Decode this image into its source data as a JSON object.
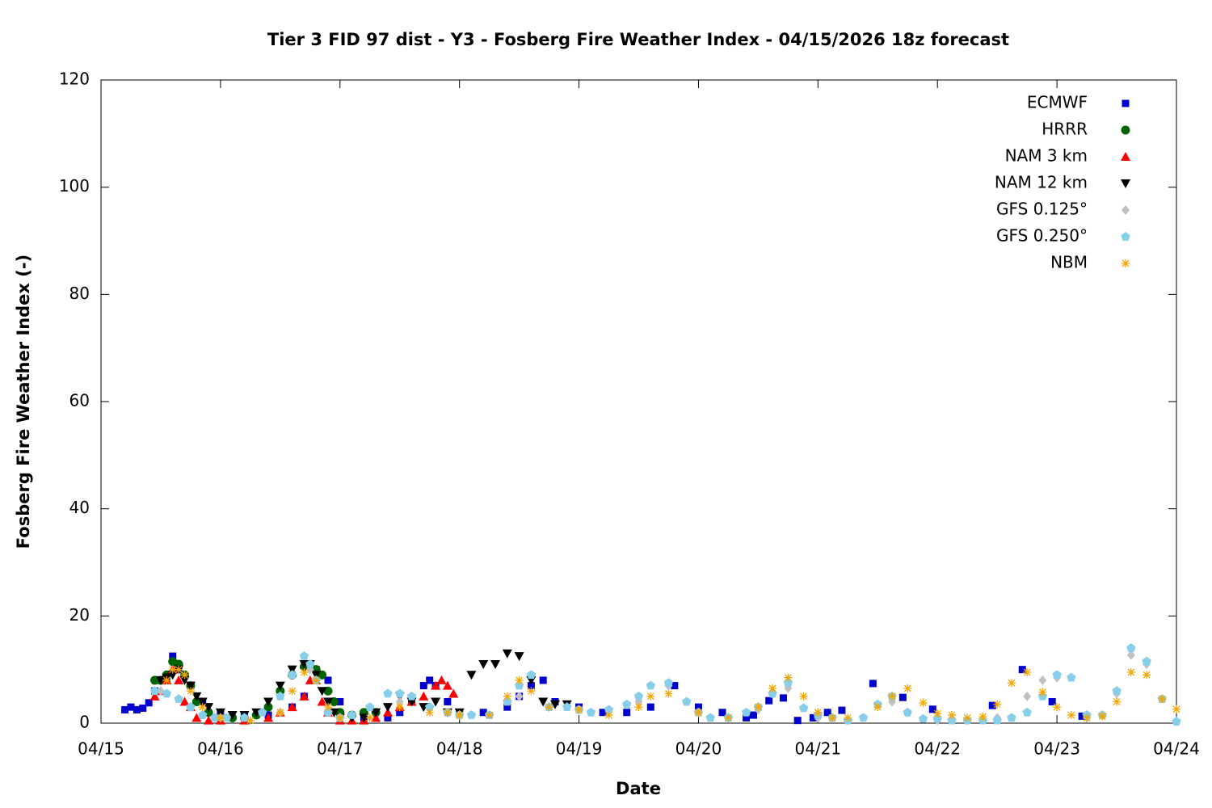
{
  "chart_data": {
    "type": "scatter",
    "title": "Tier 3 FID 97 dist - Y3 - Fosberg Fire Weather Index - 04/15/2026 18z forecast",
    "x_label": "Date",
    "y_label": "Fosberg Fire Weather Index (-)",
    "xlim": [
      0,
      9
    ],
    "xticks": [
      {
        "value": 0,
        "label": "04/15"
      },
      {
        "value": 1,
        "label": "04/16"
      },
      {
        "value": 2,
        "label": "04/17"
      },
      {
        "value": 3,
        "label": "04/18"
      },
      {
        "value": 4,
        "label": "04/19"
      },
      {
        "value": 5,
        "label": "04/20"
      },
      {
        "value": 6,
        "label": "04/21"
      },
      {
        "value": 7,
        "label": "04/22"
      },
      {
        "value": 8,
        "label": "04/23"
      },
      {
        "value": 9,
        "label": "04/24"
      }
    ],
    "ylim": [
      0,
      120
    ],
    "yticks": [
      0,
      20,
      40,
      60,
      80,
      100,
      120
    ],
    "legend": "top-right",
    "series": [
      {
        "name": "ECMWF",
        "color": "#0000cc",
        "marker": "square",
        "x": [
          0.2,
          0.25,
          0.3,
          0.35,
          0.4,
          0.45,
          0.5,
          0.55,
          0.6,
          0.65,
          0.75,
          0.85,
          1.0,
          1.2,
          1.4,
          1.6,
          1.7,
          1.8,
          1.9,
          2.0,
          2.2,
          2.4,
          2.5,
          2.6,
          2.7,
          2.75,
          2.8,
          2.9,
          3.0,
          3.2,
          3.4,
          3.5,
          3.6,
          3.7,
          3.8,
          4.0,
          4.2,
          4.4,
          4.6,
          4.8,
          5.0,
          5.2,
          5.4,
          5.46,
          5.59,
          5.71,
          5.83,
          5.96,
          6.08,
          6.2,
          6.46,
          6.71,
          6.96,
          7.46,
          7.71,
          7.96,
          8.21
        ],
        "values": [
          2.5,
          3,
          2.5,
          2.8,
          3.8,
          6,
          8,
          8.2,
          12.5,
          10,
          7,
          4,
          2,
          1.5,
          1.5,
          3,
          5,
          10,
          8,
          4,
          1,
          1,
          2,
          4,
          7,
          8,
          7,
          4,
          2,
          2,
          3,
          5,
          7,
          8,
          4,
          3,
          2,
          2,
          3,
          7,
          3,
          2,
          1,
          1.5,
          4.2,
          4.7,
          0.5,
          1,
          2,
          2.4,
          7.4,
          4.8,
          2.6,
          3.3,
          10,
          4,
          1.3
        ]
      },
      {
        "name": "HRRR",
        "color": "#006400",
        "marker": "circle",
        "x": [
          0.45,
          0.5,
          0.55,
          0.6,
          0.65,
          0.7,
          0.75,
          0.8,
          0.9,
          1.0,
          1.1,
          1.2,
          1.3,
          1.4,
          1.5,
          1.6,
          1.7,
          1.75,
          1.8,
          1.85,
          1.9,
          1.95,
          2.0,
          2.1,
          2.2,
          2.3
        ],
        "values": [
          8,
          8,
          9,
          11.5,
          11,
          9,
          7,
          4,
          2,
          1,
          1,
          1,
          1.5,
          3,
          6,
          9,
          10.5,
          10.5,
          10,
          9,
          6,
          4,
          2,
          1.5,
          2,
          2
        ]
      },
      {
        "name": "NAM 3 km",
        "color": "#ff0000",
        "marker": "triangle",
        "x": [
          0.45,
          0.5,
          0.55,
          0.6,
          0.65,
          0.7,
          0.75,
          0.8,
          0.9,
          1.0,
          1.2,
          1.4,
          1.5,
          1.6,
          1.7,
          1.75,
          1.8,
          1.85,
          1.9,
          2.0,
          2.1,
          2.2,
          2.3,
          2.4,
          2.5,
          2.6,
          2.7,
          2.8,
          2.85,
          2.9,
          2.95
        ],
        "values": [
          5,
          6,
          8,
          10,
          8,
          4,
          3,
          1,
          0.5,
          0.5,
          0.5,
          1,
          2,
          3,
          5,
          8,
          8,
          4,
          2,
          0.5,
          0.5,
          0.5,
          1,
          2,
          3,
          4,
          5,
          7,
          8,
          7,
          5.5
        ]
      },
      {
        "name": "NAM 12 km",
        "color": "#000000",
        "marker": "triangle-down",
        "x": [
          0.5,
          0.55,
          0.6,
          0.65,
          0.7,
          0.75,
          0.8,
          0.85,
          0.9,
          1.0,
          1.1,
          1.2,
          1.3,
          1.4,
          1.5,
          1.6,
          1.7,
          1.75,
          1.8,
          1.85,
          1.9,
          1.95,
          2.0,
          2.1,
          2.2,
          2.3,
          2.4,
          2.5,
          2.6,
          2.7,
          2.8,
          2.9,
          3.0,
          3.1,
          3.2,
          3.3,
          3.4,
          3.5,
          3.6,
          3.7,
          3.8,
          3.9
        ],
        "values": [
          8,
          8.5,
          9,
          10,
          8,
          7,
          5,
          4,
          3,
          2,
          1.5,
          1.5,
          2,
          4,
          7,
          10,
          11,
          11,
          9,
          6,
          4,
          2,
          1,
          1,
          1,
          2,
          3,
          5,
          4,
          3,
          4,
          2,
          2,
          9,
          11,
          11,
          13,
          12.5,
          8,
          4,
          3.5,
          3.5
        ]
      },
      {
        "name": "GFS 0.125°",
        "color": "#c0c0c0",
        "marker": "diamond",
        "x": [
          0.5,
          1.0,
          1.5,
          1.75,
          2.0,
          2.5,
          3.0,
          3.5,
          3.75,
          4.0,
          4.25,
          4.5,
          4.75,
          5.0,
          5.25,
          5.5,
          5.62,
          5.75,
          6.0,
          6.25,
          6.5,
          6.62,
          6.75,
          7.0,
          7.25,
          7.5,
          7.75,
          7.88,
          8.0,
          8.25,
          8.5,
          8.62,
          8.75,
          9.0
        ],
        "values": [
          6,
          1,
          2,
          10,
          1,
          4,
          1.5,
          5,
          3,
          2.5,
          2.5,
          4,
          7,
          2,
          1,
          2.5,
          5.5,
          6.5,
          1,
          0.5,
          3.5,
          4,
          2,
          0.5,
          0.5,
          1,
          5,
          8,
          8.5,
          1,
          5.5,
          12.7,
          11,
          0.3
        ]
      },
      {
        "name": "GFS 0.250°",
        "color": "#87ceeb",
        "marker": "pentagon",
        "x": [
          0.45,
          0.55,
          0.65,
          0.75,
          0.85,
          0.95,
          1.05,
          1.2,
          1.35,
          1.5,
          1.6,
          1.7,
          1.75,
          1.8,
          1.9,
          2.0,
          2.1,
          2.25,
          2.4,
          2.5,
          2.6,
          2.75,
          2.9,
          3.0,
          3.1,
          3.25,
          3.4,
          3.5,
          3.6,
          3.75,
          3.9,
          4.0,
          4.1,
          4.25,
          4.4,
          4.5,
          4.6,
          4.75,
          4.9,
          5.0,
          5.1,
          5.25,
          5.4,
          5.5,
          5.62,
          5.75,
          5.88,
          6.0,
          6.12,
          6.25,
          6.38,
          6.5,
          6.62,
          6.75,
          6.88,
          7.0,
          7.12,
          7.25,
          7.38,
          7.5,
          7.62,
          7.75,
          7.88,
          8.0,
          8.12,
          8.25,
          8.38,
          8.5,
          8.62,
          8.75,
          8.88,
          9.0
        ],
        "values": [
          6,
          5.5,
          4.5,
          3,
          1.5,
          1,
          1,
          1,
          2,
          5,
          9,
          12.5,
          11,
          8,
          2,
          1,
          1.5,
          3,
          5.5,
          5.5,
          5,
          3,
          2,
          1.5,
          1.5,
          1.5,
          4,
          7,
          9,
          3,
          3,
          2.5,
          2,
          2.5,
          3.5,
          5,
          7,
          7.5,
          4,
          2,
          1,
          1,
          2,
          3,
          5.5,
          7.5,
          2.8,
          1.5,
          1,
          0.5,
          1,
          3.5,
          5,
          2,
          0.8,
          0.8,
          0.5,
          0.5,
          0.5,
          0.5,
          1,
          2,
          5,
          9,
          8.5,
          1.5,
          1.5,
          6,
          14,
          11.5,
          4.5,
          0.3
        ]
      },
      {
        "name": "NBM",
        "color": "#f5a500",
        "marker": "asterisk",
        "x": [
          0.55,
          0.6,
          0.65,
          0.7,
          0.75,
          0.85,
          1.0,
          1.25,
          1.5,
          1.6,
          1.7,
          1.8,
          1.9,
          2.0,
          2.25,
          2.5,
          2.75,
          2.9,
          3.0,
          3.25,
          3.4,
          3.5,
          3.6,
          3.75,
          4.0,
          4.25,
          4.5,
          4.6,
          4.75,
          5.0,
          5.25,
          5.5,
          5.62,
          5.75,
          5.88,
          6.0,
          6.12,
          6.25,
          6.5,
          6.62,
          6.75,
          6.88,
          7.0,
          7.12,
          7.25,
          7.38,
          7.5,
          7.62,
          7.75,
          7.88,
          8.0,
          8.12,
          8.25,
          8.38,
          8.5,
          8.62,
          8.75,
          8.88,
          9.0
        ],
        "values": [
          8,
          10,
          10,
          9,
          6,
          3,
          1,
          0.5,
          2,
          6,
          9.5,
          8,
          3,
          1,
          1,
          3,
          2,
          2,
          1.5,
          1.5,
          5,
          8,
          6,
          3,
          2.5,
          1.5,
          3,
          5,
          5.5,
          2,
          1,
          3,
          6.5,
          8.5,
          5,
          2,
          1,
          1,
          3,
          5,
          6.5,
          3.8,
          1.8,
          1.5,
          1,
          1.2,
          3.5,
          7.5,
          9.5,
          5.8,
          3,
          1.5,
          1,
          1.3,
          4,
          9.5,
          9,
          4.5,
          2.6
        ]
      }
    ]
  }
}
